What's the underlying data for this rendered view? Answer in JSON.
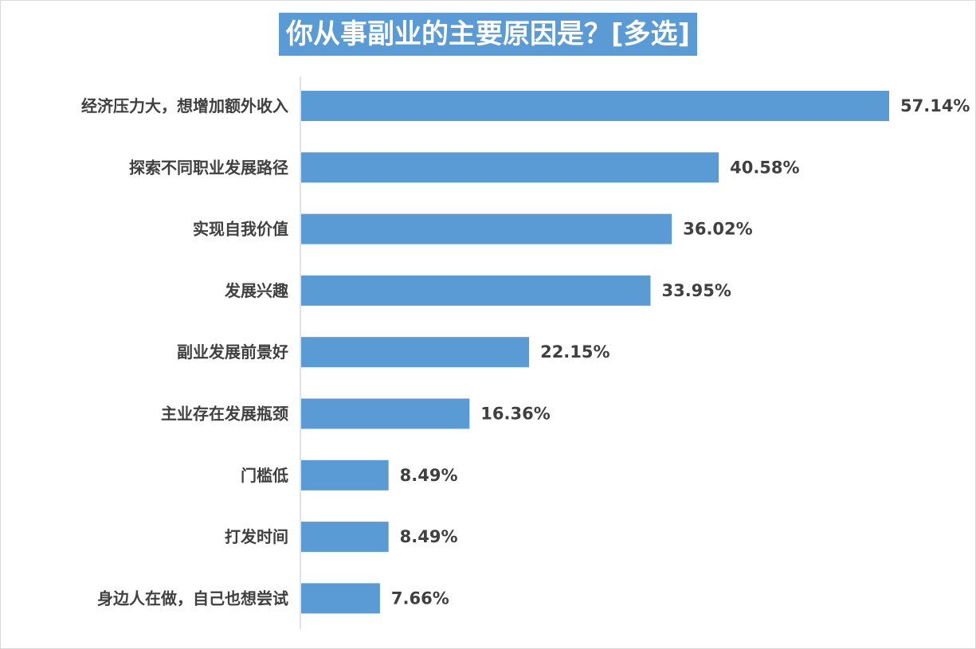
{
  "chart_data": {
    "type": "bar",
    "orientation": "horizontal",
    "title": "你从事副业的主要原因是？[多选]",
    "categories": [
      "经济压力大，想增加额外收入",
      "探索不同职业发展路径",
      "实现自我价值",
      "发展兴趣",
      "副业发展前景好",
      "主业存在发展瓶颈",
      "门槛低",
      "打发时间",
      "身边人在做，自己也想尝试"
    ],
    "values": [
      57.14,
      40.58,
      36.02,
      33.95,
      22.15,
      16.36,
      8.49,
      8.49,
      7.66
    ],
    "value_labels": [
      "57.14%",
      "40.58%",
      "36.02%",
      "33.95%",
      "22.15%",
      "16.36%",
      "8.49%",
      "8.49%",
      "7.66%"
    ],
    "unit": "%",
    "xlabel": "",
    "ylabel": "",
    "xlim": [
      0,
      60
    ],
    "grid": false,
    "legend": "none",
    "bar_color": "#5b9bd5",
    "title_background": "#5b9bd5",
    "title_color": "#ffffff",
    "label_color": "#404040",
    "axis_color": "#d9d9d9"
  }
}
